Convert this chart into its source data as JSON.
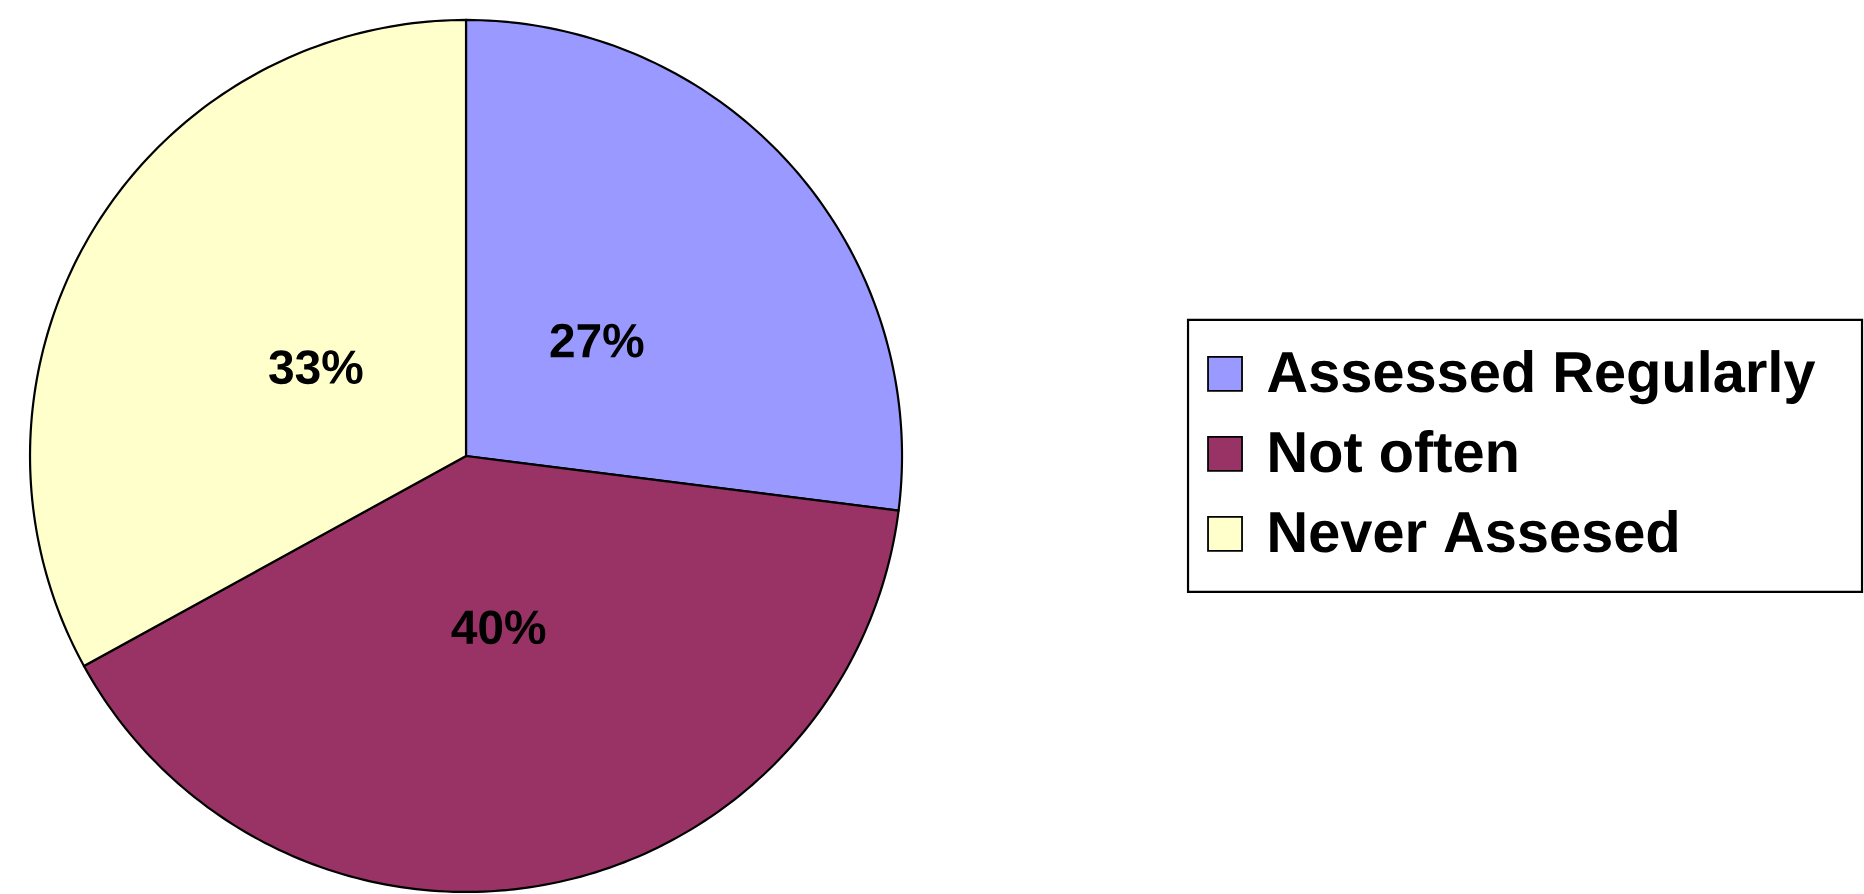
{
  "chart_data": {
    "type": "pie",
    "categories": [
      "Assessed Regularly",
      "Not often",
      "Never Assesed"
    ],
    "values": [
      27,
      40,
      33
    ],
    "colors": [
      "#9999ff",
      "#993366",
      "#ffffcc"
    ],
    "value_labels": [
      "27%",
      "40%",
      "33%"
    ],
    "legend": "right"
  }
}
